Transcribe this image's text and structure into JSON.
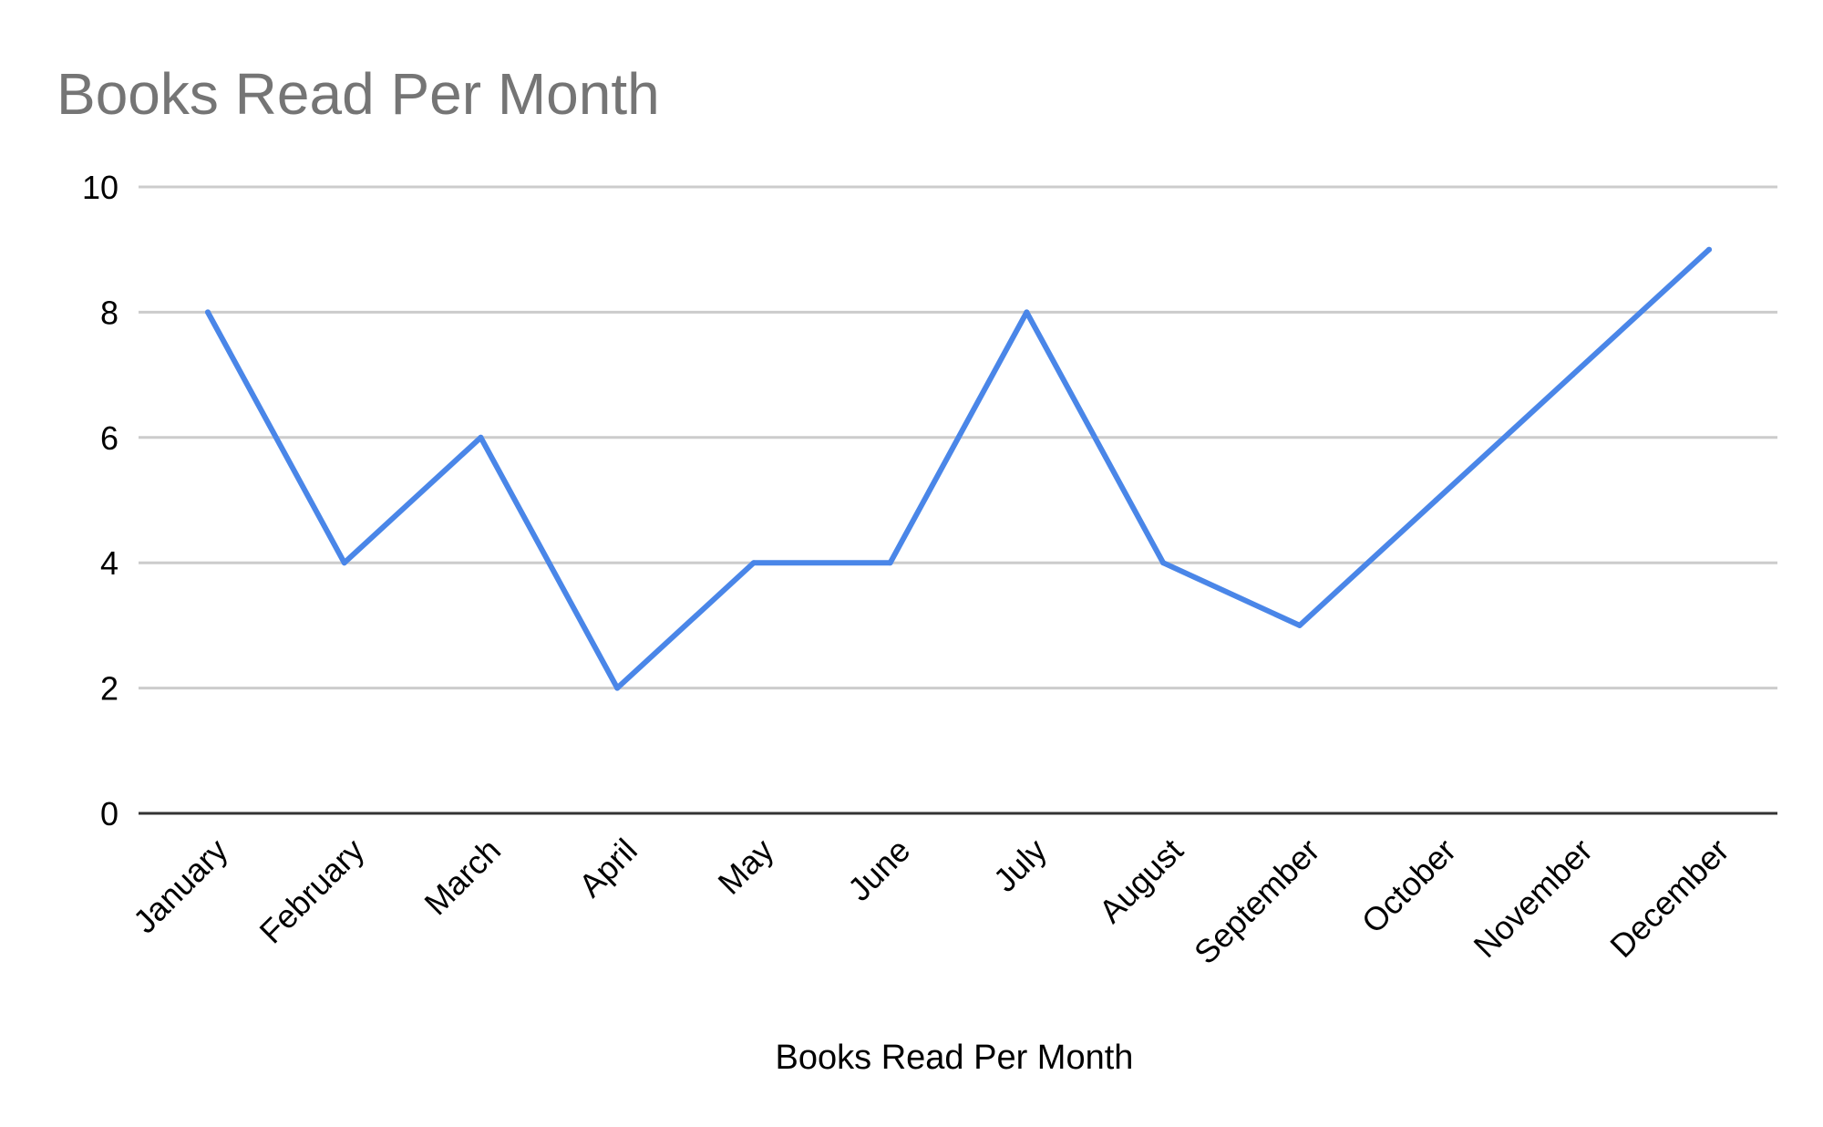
{
  "chart_data": {
    "type": "line",
    "title": "Books Read Per Month",
    "xlabel": "Books Read Per Month",
    "ylabel": "",
    "categories": [
      "January",
      "February",
      "March",
      "April",
      "May",
      "June",
      "July",
      "August",
      "September",
      "October",
      "November",
      "December"
    ],
    "series": [
      {
        "values": [
          8,
          4,
          6,
          2,
          4,
          4,
          8,
          4,
          3,
          5,
          7,
          9
        ],
        "color": "#4a86e8"
      }
    ],
    "ylim": [
      0,
      10
    ],
    "yticks": [
      0,
      2,
      4,
      6,
      8,
      10
    ],
    "grid": true,
    "legend": "none"
  }
}
